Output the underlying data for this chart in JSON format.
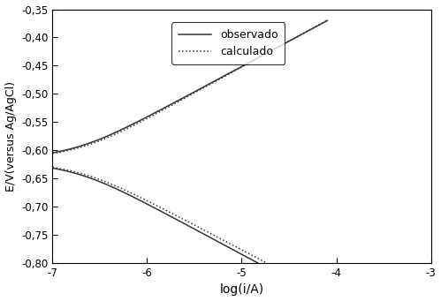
{
  "title": "",
  "xlabel": "log(i/A)",
  "ylabel": "E/V(versus Ag/AgCl)",
  "xlim": [
    -7,
    -3
  ],
  "ylim": [
    -0.8,
    -0.35
  ],
  "xticks": [
    -7,
    -6,
    -5,
    -4,
    -3
  ],
  "yticks": [
    -0.8,
    -0.75,
    -0.7,
    -0.65,
    -0.6,
    -0.55,
    -0.5,
    -0.45,
    -0.4,
    -0.35
  ],
  "E_corr": -0.618,
  "log_i_corr": -6.85,
  "ba": 0.09,
  "bc": 0.09,
  "legend_observed": "observado",
  "legend_calculated": "calculado",
  "line_color": "#333333",
  "background_color": "#ffffff"
}
